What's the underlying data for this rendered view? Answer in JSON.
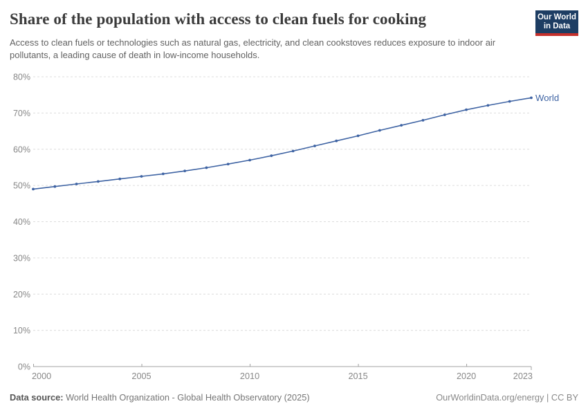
{
  "header": {
    "title": "Share of the population with access to clean fuels for cooking",
    "subtitle": "Access to clean fuels or technologies such as natural gas, electricity, and clean cookstoves reduces exposure to indoor air pollutants, a leading cause of death in low-income households.",
    "logo_line1": "Our World",
    "logo_line2": "in Data",
    "logo_bg_color": "#1d3d63",
    "logo_accent_color": "#c5302c"
  },
  "chart_data": {
    "type": "line",
    "title": "Share of the population with access to clean fuels for cooking",
    "xlabel": "",
    "ylabel": "",
    "ylim": [
      0,
      80
    ],
    "yticks": [
      0,
      10,
      20,
      30,
      40,
      50,
      60,
      70,
      80
    ],
    "ytick_suffix": "%",
    "xticks": [
      2000,
      2005,
      2010,
      2015,
      2020,
      2023
    ],
    "grid": "horizontal-dashed",
    "legend_position": "end-of-line-label",
    "years": [
      2000,
      2001,
      2002,
      2003,
      2004,
      2005,
      2006,
      2007,
      2008,
      2009,
      2010,
      2011,
      2012,
      2013,
      2014,
      2015,
      2016,
      2017,
      2018,
      2019,
      2020,
      2021,
      2022,
      2023
    ],
    "series": [
      {
        "name": "World",
        "color": "#3e63a3",
        "values": [
          49.0,
          49.7,
          50.4,
          51.1,
          51.8,
          52.5,
          53.2,
          54.0,
          54.9,
          55.9,
          57.0,
          58.2,
          59.5,
          60.9,
          62.3,
          63.7,
          65.2,
          66.6,
          68.0,
          69.5,
          70.9,
          72.1,
          73.2,
          74.2
        ]
      }
    ],
    "colors": {
      "grid": "#dcdcdc",
      "axis": "#a0a0a0",
      "tick_label": "#878787"
    }
  },
  "footer": {
    "datasource_label": "Data source:",
    "datasource_text": " World Health Organization - Global Health Observatory (2025)",
    "rights": "OurWorldinData.org/energy | CC BY"
  }
}
